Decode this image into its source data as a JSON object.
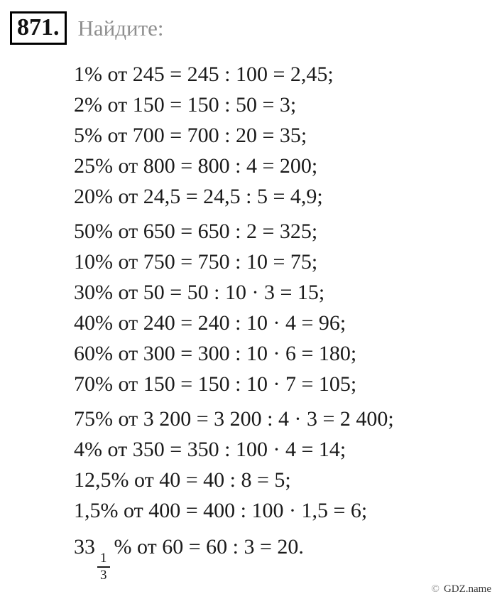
{
  "header": {
    "problem_number": "871.",
    "task_label": "Найдите:"
  },
  "lines": [
    "1% от 245 = 245 : 100 = 2,45;",
    "2% от 150 = 150 : 50 = 3;",
    "5% от 700 = 700 : 20 = 35;",
    "25% от 800 = 800 : 4 = 200;",
    "20% от 24,5 = 24,5 : 5 = 4,9;",
    "50% от 650 = 650 : 2 = 325;",
    "10% от 750 = 750 : 10 = 75;",
    "30% от 50 = 50 : 10 · 3 = 15;",
    "40% от 240 = 240 : 10 · 4 = 96;",
    "60% от 300 = 300 : 10 · 6 = 180;",
    "70% от 150 = 150 : 10 · 7 = 105;",
    "75% от 3 200 = 3 200 : 4 · 3 = 2 400;",
    "4% от 350 = 350 : 100 · 4 = 14;",
    "12,5% от 40 = 40 : 8 = 5;",
    "1,5% от 400 = 400 : 100 · 1,5 = 6;"
  ],
  "last_line": {
    "whole": "33",
    "frac_numerator": "1",
    "frac_denominator": "3",
    "rest": "% от 60 = 60 : 3 = 20."
  },
  "footer": {
    "copyright_symbol": "©",
    "site_name": "GDZ.name"
  },
  "colors": {
    "text": "#1b1b1b",
    "muted_label": "#8f8f8f",
    "box_border": "#000000",
    "background": "#ffffff"
  }
}
